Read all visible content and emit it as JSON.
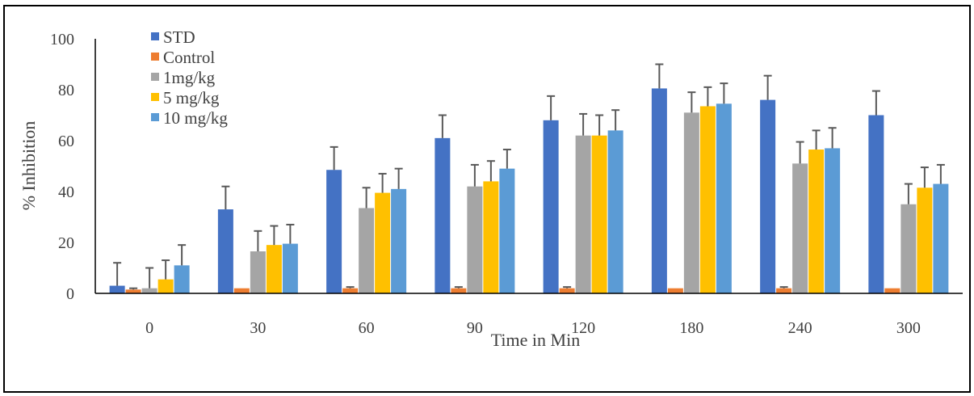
{
  "chart_data": {
    "type": "bar",
    "title": "",
    "xlabel": "Time in Min",
    "ylabel": "% Inhibition",
    "categories": [
      "0",
      "30",
      "60",
      "90",
      "120",
      "180",
      "240",
      "300"
    ],
    "ylim": [
      0,
      100
    ],
    "yticks": [
      "0",
      "20",
      "40",
      "60",
      "80",
      "100"
    ],
    "grid": false,
    "legend_position": "top-left",
    "error_bars": "upper",
    "series": [
      {
        "name": "STD",
        "color": "#4472C4",
        "values": [
          3,
          33,
          48.5,
          61,
          68,
          80.5,
          76,
          70
        ],
        "errors": [
          9,
          9,
          9,
          9,
          9.5,
          9.5,
          9.5,
          9.5
        ]
      },
      {
        "name": "Control",
        "color": "#ED7D31",
        "values": [
          1.5,
          2,
          2,
          2,
          2,
          2,
          2,
          2
        ],
        "errors": [
          0.5,
          0,
          0.5,
          0.5,
          0.5,
          0,
          0.5,
          0
        ]
      },
      {
        "name": "1mg/kg",
        "color": "#A5A5A5",
        "values": [
          2,
          16.5,
          33.5,
          42,
          62,
          71,
          51,
          35
        ],
        "errors": [
          8,
          8,
          8,
          8.5,
          8.5,
          8,
          8.5,
          8
        ]
      },
      {
        "name": "5 mg/kg",
        "color": "#FFC000",
        "values": [
          5.5,
          19,
          39.5,
          44,
          62,
          73.5,
          56.5,
          41.5
        ],
        "errors": [
          7.5,
          7.5,
          7.5,
          8,
          8,
          7.5,
          7.5,
          8
        ]
      },
      {
        "name": "10 mg/kg",
        "color": "#5B9BD5",
        "values": [
          11,
          19.5,
          41,
          49,
          64,
          74.5,
          57,
          43
        ],
        "errors": [
          8,
          7.5,
          8,
          7.5,
          8,
          8,
          8,
          7.5
        ]
      }
    ]
  }
}
